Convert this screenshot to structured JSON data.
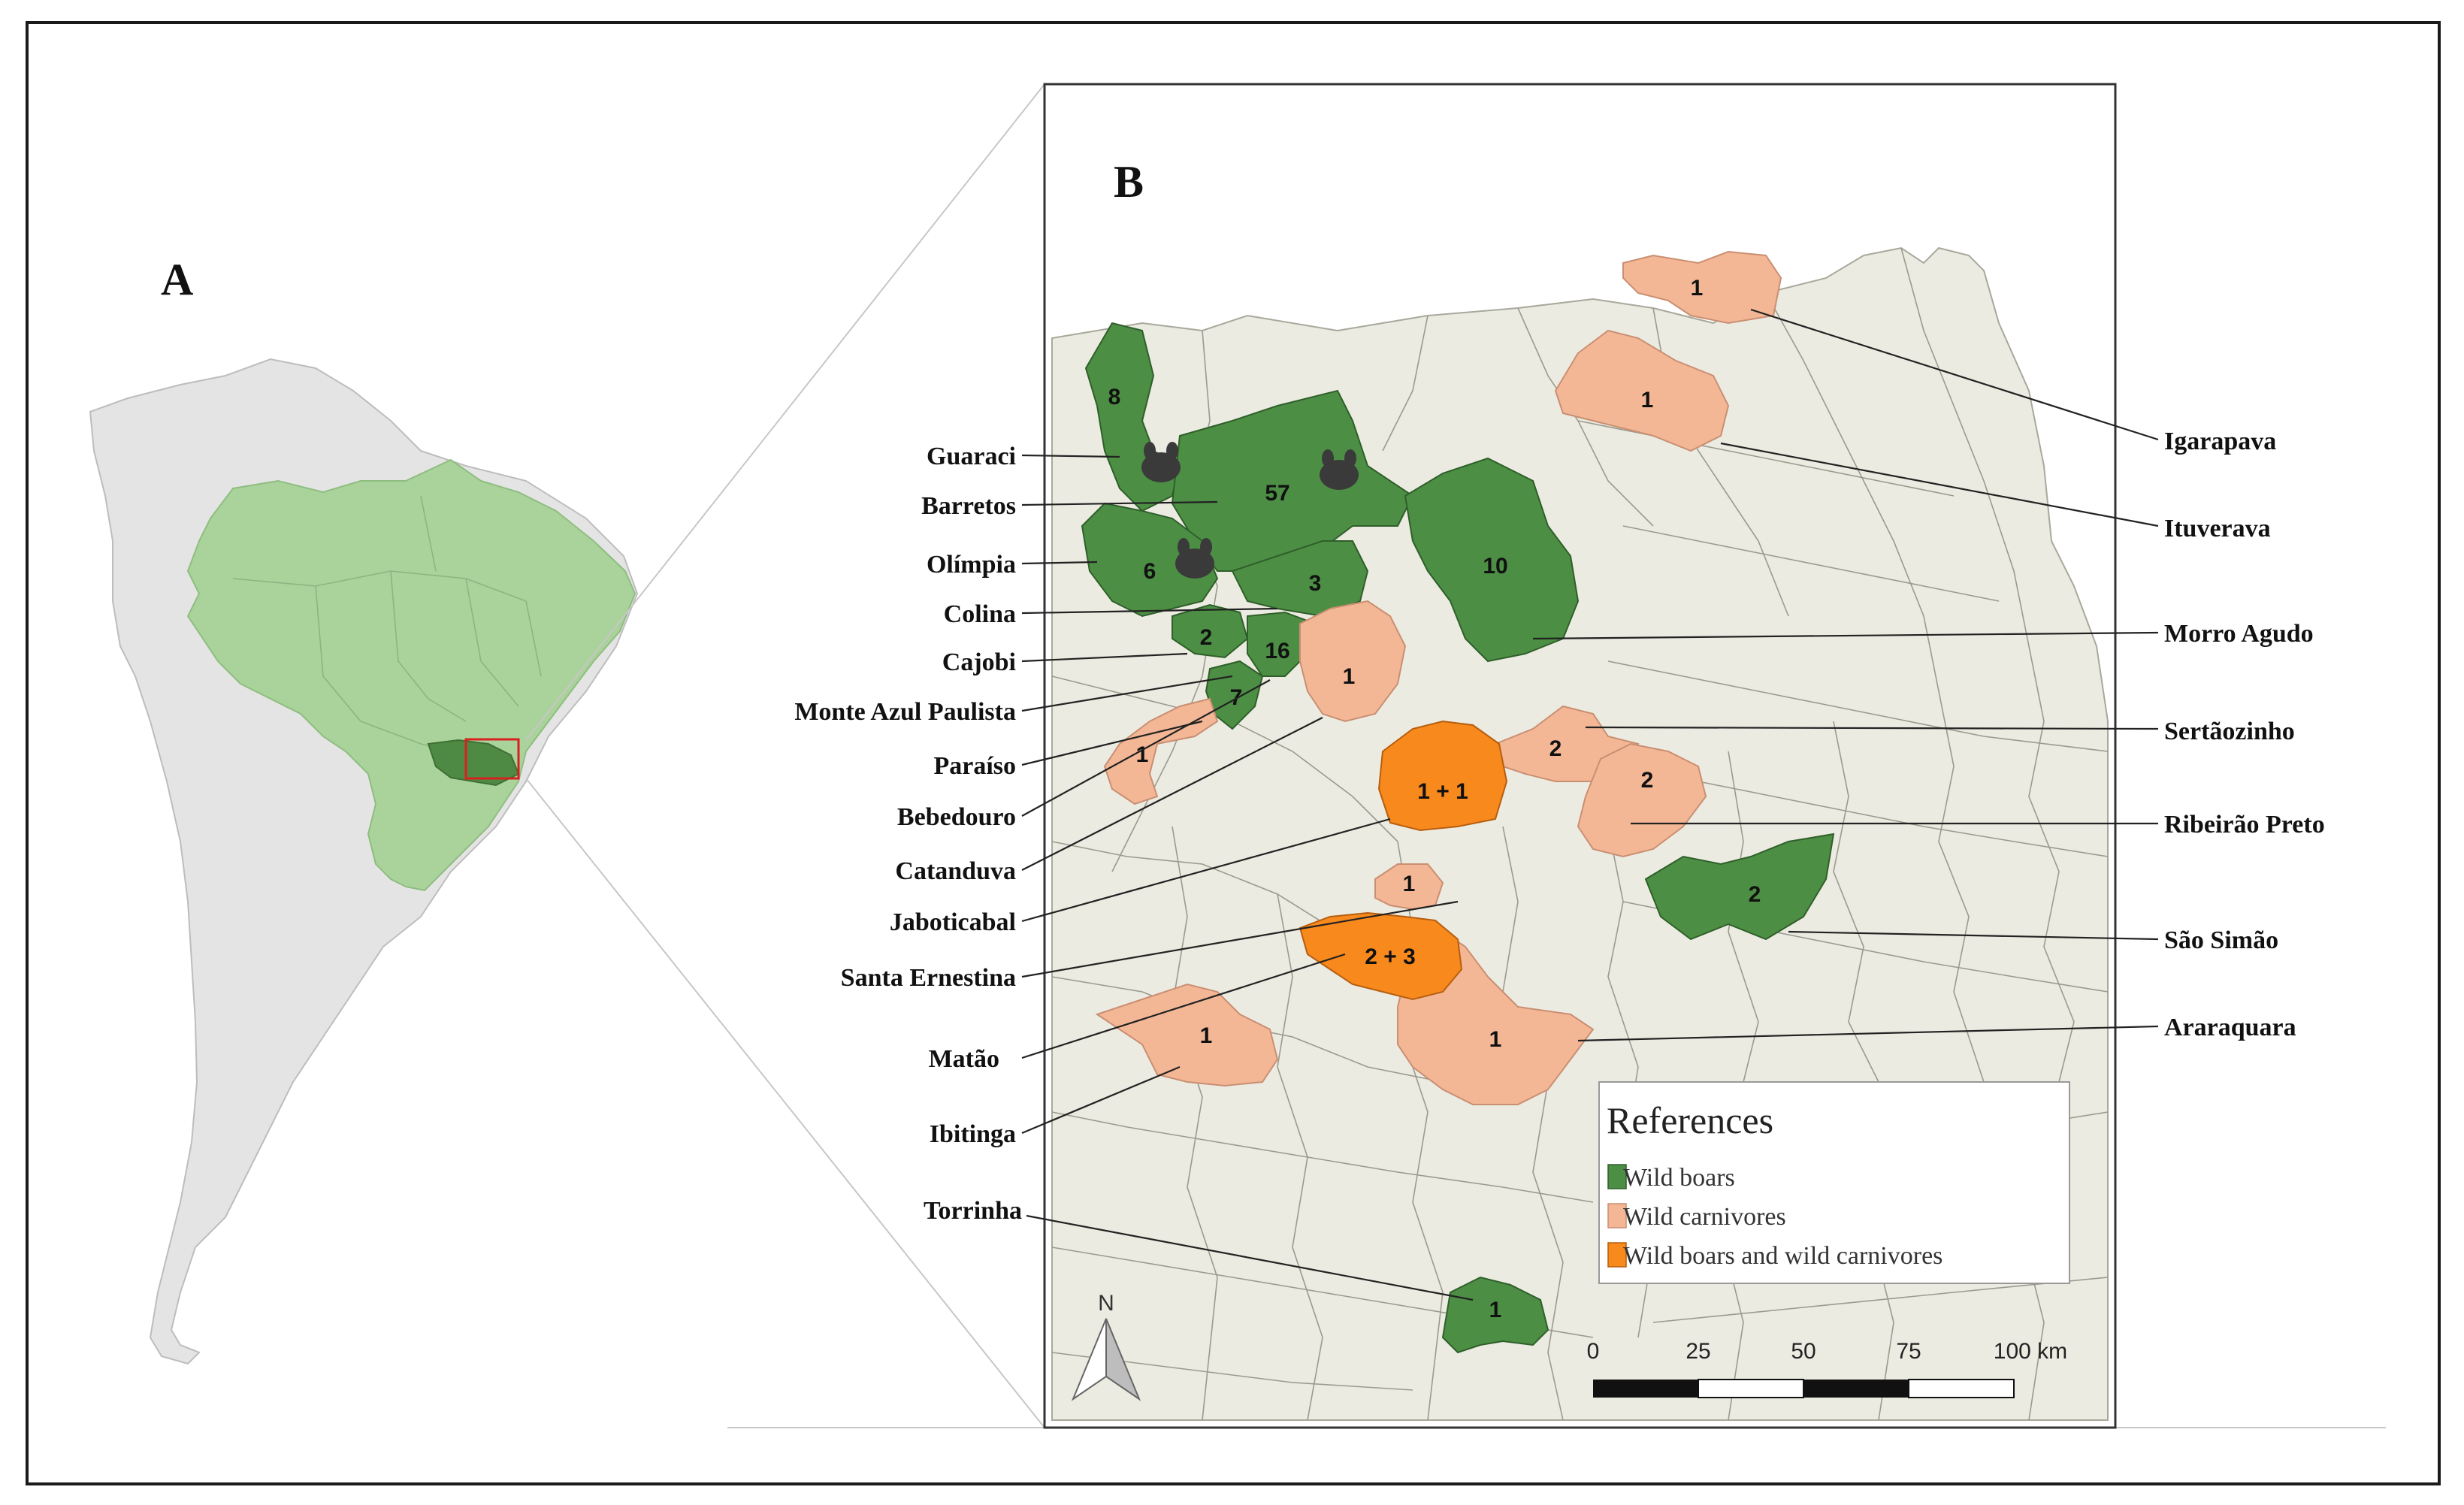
{
  "panels": {
    "a": "A",
    "b": "B"
  },
  "colors": {
    "wild_boars": "#4c8f44",
    "wild_carnivores": "#f4b796",
    "both": "#f8891d",
    "basemap": "#ecebe2",
    "brazil": "#a9d39a",
    "sao_paulo": "#4e8a43",
    "continent": "#e4e4e4"
  },
  "left_labels": [
    "Guaraci",
    "Barretos",
    "Olímpia",
    "Colina",
    "Cajobi",
    "Monte Azul Paulista",
    "Paraíso",
    "Bebedouro",
    "Catanduva",
    "Jaboticabal",
    "Santa Ernestina",
    "Matão",
    "Ibitinga",
    "Torrinha"
  ],
  "right_labels": [
    "Igarapava",
    "Ituverava",
    "Morro Agudo",
    "Sertãozinho",
    "Ribeirão Preto",
    "São Simão",
    "Araraquara"
  ],
  "counts": {
    "guaraci": "8",
    "barretos": "57",
    "olimpia": "6",
    "colina": "3",
    "cajobi": "2",
    "bebedouro": "16",
    "monte_azul": "7",
    "paraiso": "1",
    "catanduva": "1",
    "jaboticabal": "1 + 1",
    "santa_ernestina": "1",
    "matao": "2 + 3",
    "ibitinga": "1",
    "torrinha": "1",
    "igarapava": "1",
    "ituverava": "1",
    "morro_agudo": "10",
    "sertaozinho": "2",
    "ribeirao_preto": "2",
    "sao_simao": "2",
    "araraquara": "1"
  },
  "legend": {
    "title": "References",
    "items": [
      {
        "label": "Wild boars",
        "color": "#4c8f44"
      },
      {
        "label": "Wild carnivores",
        "color": "#f4b796"
      },
      {
        "label": "Wild boars and wild carnivores",
        "color": "#f8891d"
      }
    ]
  },
  "scale_bar": {
    "ticks": [
      "0",
      "25",
      "50",
      "75",
      "100 km"
    ]
  },
  "north_arrow": "N"
}
